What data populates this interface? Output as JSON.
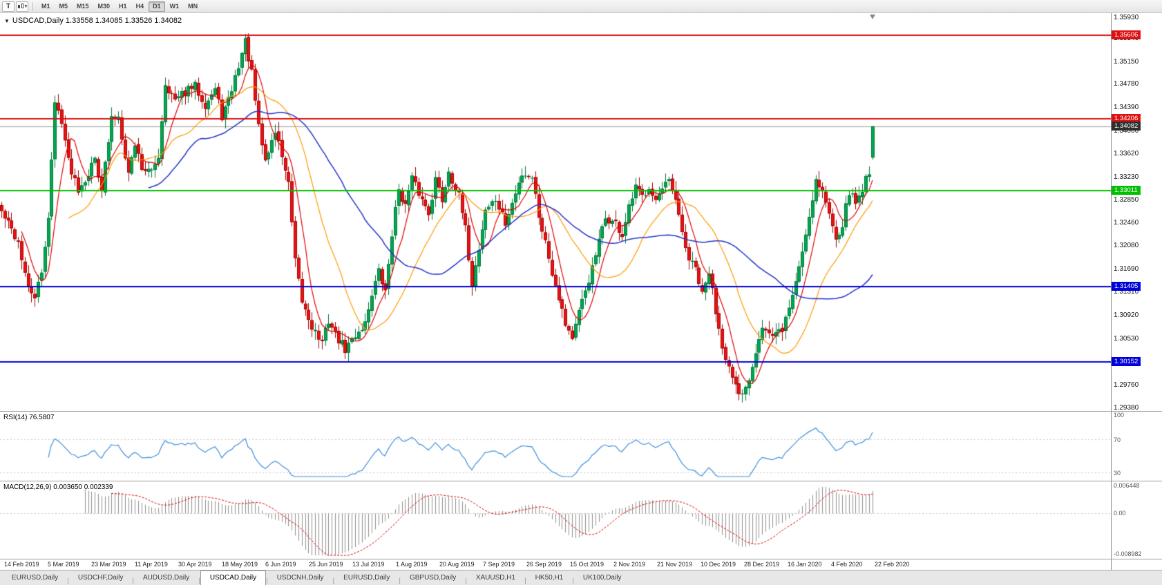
{
  "toolbar": {
    "text_tool_glyph": "T",
    "chart_style_caret": "▾",
    "timeframes": [
      {
        "label": "M1",
        "active": false
      },
      {
        "label": "M5",
        "active": false
      },
      {
        "label": "M15",
        "active": false
      },
      {
        "label": "M30",
        "active": false
      },
      {
        "label": "H1",
        "active": false
      },
      {
        "label": "H4",
        "active": false
      },
      {
        "label": "D1",
        "active": true
      },
      {
        "label": "W1",
        "active": false
      },
      {
        "label": "MN",
        "active": false
      }
    ]
  },
  "chart": {
    "title_line": "USDCAD,Daily 1.33558 1.34085 1.33526 1.34082",
    "symbol": "USDCAD",
    "period": "Daily",
    "current_price_tag": {
      "label": "1.34082",
      "bg": "#2e2e2e",
      "text": "#ffffff"
    },
    "hlines": [
      {
        "label": "1.35606",
        "price": 1.35606,
        "color": "#dd1111"
      },
      {
        "label": "1.34206",
        "price": 1.34206,
        "color": "#dd1111"
      },
      {
        "label": "1.33011",
        "price": 1.33011,
        "color": "#00c000"
      },
      {
        "label": "1.31405",
        "price": 1.31405,
        "color": "#0000d8"
      },
      {
        "label": "1.30152",
        "price": 1.30152,
        "color": "#0000d8"
      }
    ],
    "y_axis_labels": [
      "1.35930",
      "1.35540",
      "1.35150",
      "1.34780",
      "1.34390",
      "1.34000",
      "1.33620",
      "1.33230",
      "1.32850",
      "1.32460",
      "1.32080",
      "1.31690",
      "1.31310",
      "1.30920",
      "1.30530",
      "1.30140",
      "1.29760",
      "1.29380"
    ],
    "x_axis_labels": [
      "14 Feb 2019",
      "5 Mar 2019",
      "23 Mar 2019",
      "11 Apr 2019",
      "30 Apr 2019",
      "18 May 2019",
      "6 Jun 2019",
      "25 Jun 2019",
      "13 Jul 2019",
      "1 Aug 2019",
      "20 Aug 2019",
      "7 Sep 2019",
      "26 Sep 2019",
      "15 Oct 2019",
      "2 Nov 2019",
      "21 Nov 2019",
      "10 Dec 2019",
      "28 Dec 2019",
      "16 Jan 2020",
      "4 Feb 2020",
      "22 Feb 2020"
    ]
  },
  "rsi": {
    "label": "RSI(14) 76.5807",
    "period": 14,
    "value": 76.5807,
    "color": "#3b8ede",
    "axis_labels": [
      {
        "text": "100",
        "value": 100
      },
      {
        "text": "70",
        "value": 70
      },
      {
        "text": "30",
        "value": 30
      }
    ],
    "level_lines": [
      70,
      30
    ],
    "scale": [
      25,
      100
    ]
  },
  "macd": {
    "label": "MACD(12,26,9) 0.003650 0.002339",
    "fast": 12,
    "slow": 26,
    "signal": 9,
    "main_value": 0.00365,
    "signal_value": 0.002339,
    "axis_labels": [
      {
        "text": "0.006448",
        "pos": "top"
      },
      {
        "text": "0.00",
        "pos": "zero"
      },
      {
        "text": "-0.008982",
        "pos": "bottom"
      }
    ],
    "scale_max": 0.006448,
    "scale_min": -0.008982,
    "histogram_color": "#8f8f8f",
    "signal_color": "#e00000"
  },
  "tabs": [
    {
      "label": "EURUSD,Daily",
      "active": false
    },
    {
      "label": "USDCHF,Daily",
      "active": false
    },
    {
      "label": "AUDUSD,Daily",
      "active": false
    },
    {
      "label": "USDCAD,Daily",
      "active": true
    },
    {
      "label": "USDCNH,Daily",
      "active": false
    },
    {
      "label": "EURUSD,Daily",
      "active": false
    },
    {
      "label": "GBPUSD,Daily",
      "active": false
    },
    {
      "label": "XAUUSD,H1",
      "active": false
    },
    {
      "label": "HK50,H1",
      "active": false
    },
    {
      "label": "UK100,Daily",
      "active": false
    }
  ],
  "chart_data": {
    "type": "candlestick",
    "symbol": "USDCAD",
    "timeframe": "D1",
    "ohlc": {
      "open": 1.33558,
      "high": 1.34085,
      "low": 1.33526,
      "close": 1.34082
    },
    "price_top": 1.3597,
    "price_bottom": 1.2933,
    "candle_count": 262,
    "seed": 42,
    "candle_up_color": "#00a84f",
    "candle_up_border": "#00773a",
    "candle_down_color": "#ee1111",
    "candle_down_border": "#a30000",
    "bid_line_color": "#9a9a9a",
    "moving_averages": [
      {
        "period": 7,
        "color": "#e00000",
        "width": 1.2
      },
      {
        "period": 21,
        "color": "#ff9900",
        "width": 1.2
      },
      {
        "period": 45,
        "color": "#2233cc",
        "width": 1.5
      }
    ],
    "close_anchors": [
      [
        0,
        1.3265
      ],
      [
        2,
        1.3245
      ],
      [
        5,
        1.3215
      ],
      [
        8,
        1.3135
      ],
      [
        10,
        1.3125
      ],
      [
        12,
        1.316
      ],
      [
        14,
        1.326
      ],
      [
        16,
        1.3445
      ],
      [
        18,
        1.342
      ],
      [
        20,
        1.335
      ],
      [
        23,
        1.3305
      ],
      [
        26,
        1.333
      ],
      [
        28,
        1.3355
      ],
      [
        30,
        1.3305
      ],
      [
        33,
        1.342
      ],
      [
        35,
        1.3425
      ],
      [
        38,
        1.333
      ],
      [
        40,
        1.338
      ],
      [
        42,
        1.334
      ],
      [
        45,
        1.333
      ],
      [
        47,
        1.336
      ],
      [
        49,
        1.348
      ],
      [
        52,
        1.345
      ],
      [
        55,
        1.3465
      ],
      [
        58,
        1.3475
      ],
      [
        61,
        1.3445
      ],
      [
        64,
        1.347
      ],
      [
        66,
        1.3425
      ],
      [
        68,
        1.345
      ],
      [
        71,
        1.351
      ],
      [
        73,
        1.355
      ],
      [
        75,
        1.3495
      ],
      [
        77,
        1.3405
      ],
      [
        79,
        1.335
      ],
      [
        82,
        1.34
      ],
      [
        84,
        1.336
      ],
      [
        86,
        1.331
      ],
      [
        88,
        1.318
      ],
      [
        90,
        1.3115
      ],
      [
        93,
        1.3075
      ],
      [
        96,
        1.3045
      ],
      [
        98,
        1.3085
      ],
      [
        100,
        1.306
      ],
      [
        103,
        1.3035
      ],
      [
        106,
        1.306
      ],
      [
        109,
        1.308
      ],
      [
        111,
        1.313
      ],
      [
        113,
        1.3165
      ],
      [
        115,
        1.313
      ],
      [
        117,
        1.323
      ],
      [
        119,
        1.3305
      ],
      [
        121,
        1.3275
      ],
      [
        123,
        1.332
      ],
      [
        126,
        1.3285
      ],
      [
        128,
        1.3265
      ],
      [
        130,
        1.332
      ],
      [
        132,
        1.3285
      ],
      [
        134,
        1.3335
      ],
      [
        137,
        1.329
      ],
      [
        139,
        1.3235
      ],
      [
        141,
        1.3145
      ],
      [
        143,
        1.3205
      ],
      [
        145,
        1.327
      ],
      [
        148,
        1.3285
      ],
      [
        151,
        1.3245
      ],
      [
        154,
        1.3295
      ],
      [
        156,
        1.333
      ],
      [
        159,
        1.3325
      ],
      [
        161,
        1.326
      ],
      [
        163,
        1.3215
      ],
      [
        165,
        1.3165
      ],
      [
        167,
        1.3125
      ],
      [
        169,
        1.308
      ],
      [
        171,
        1.3055
      ],
      [
        173,
        1.3095
      ],
      [
        175,
        1.3135
      ],
      [
        177,
        1.317
      ],
      [
        179,
        1.3215
      ],
      [
        181,
        1.3255
      ],
      [
        184,
        1.3245
      ],
      [
        186,
        1.3225
      ],
      [
        188,
        1.327
      ],
      [
        190,
        1.3305
      ],
      [
        192,
        1.329
      ],
      [
        194,
        1.331
      ],
      [
        196,
        1.3285
      ],
      [
        198,
        1.33
      ],
      [
        200,
        1.3315
      ],
      [
        202,
        1.328
      ],
      [
        204,
        1.323
      ],
      [
        206,
        1.3185
      ],
      [
        208,
        1.317
      ],
      [
        210,
        1.3125
      ],
      [
        212,
        1.3165
      ],
      [
        214,
        1.31
      ],
      [
        216,
        1.3045
      ],
      [
        219,
        1.2985
      ],
      [
        221,
        1.2955
      ],
      [
        223,
        1.297
      ],
      [
        225,
        1.301
      ],
      [
        227,
        1.306
      ],
      [
        228,
        1.3075
      ],
      [
        231,
        1.3055
      ],
      [
        234,
        1.307
      ],
      [
        236,
        1.3105
      ],
      [
        238,
        1.315
      ],
      [
        240,
        1.32
      ],
      [
        242,
        1.326
      ],
      [
        244,
        1.332
      ],
      [
        246,
        1.33
      ],
      [
        248,
        1.326
      ],
      [
        250,
        1.3225
      ],
      [
        252,
        1.3245
      ],
      [
        254,
        1.33
      ],
      [
        256,
        1.328
      ],
      [
        258,
        1.3305
      ],
      [
        260,
        1.3335
      ],
      [
        261,
        1.3408
      ]
    ]
  }
}
